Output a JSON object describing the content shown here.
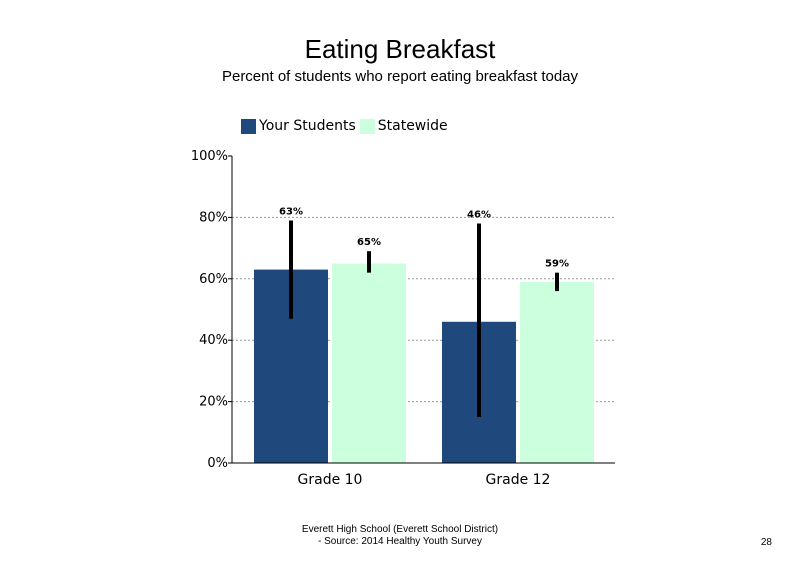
{
  "title": "Eating Breakfast",
  "subtitle": "Percent of students who report eating breakfast today",
  "footer": {
    "line1": "Everett High School (Everett School District)",
    "line2": "- Source: 2014 Healthy Youth Survey"
  },
  "page_number": "28",
  "chart_data": {
    "type": "bar",
    "categories": [
      "Grade 10",
      "Grade 12"
    ],
    "series": [
      {
        "name": "Your Students",
        "color": "#1f497d",
        "values": [
          63,
          46
        ],
        "labels": [
          "63%",
          "46%"
        ],
        "error_low": [
          47,
          15
        ],
        "error_high": [
          79,
          78
        ]
      },
      {
        "name": "Statewide",
        "color": "#ccffdd",
        "values": [
          65,
          59
        ],
        "labels": [
          "65%",
          "59%"
        ],
        "error_low": [
          62,
          56
        ],
        "error_high": [
          69,
          62
        ]
      }
    ],
    "ylim": [
      0,
      100
    ],
    "yticks": [
      0,
      20,
      40,
      60,
      80,
      100
    ],
    "ytick_labels": [
      "0%",
      "20%",
      "40%",
      "60%",
      "80%",
      "100%"
    ],
    "gridlines": "dashed horizontal",
    "legend_position": "top"
  }
}
